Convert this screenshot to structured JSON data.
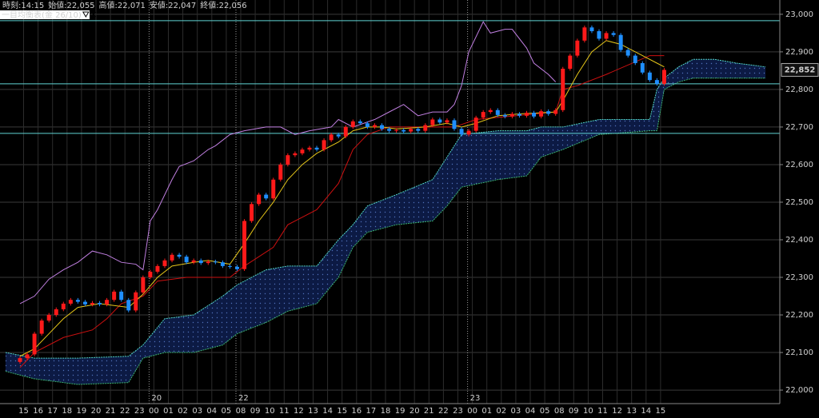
{
  "chart_data": {
    "type": "candlestick",
    "header": [
      "時刻:14:15",
      "始値:22,055",
      "高値:22,071",
      "安値:22,047",
      "終値:22,056"
    ],
    "indicator_label": "一目均衡表(金 26/10)",
    "ylim": [
      21964,
      23038
    ],
    "yticks": [
      {
        "value": 22000,
        "label": "22,000"
      },
      {
        "value": 22100,
        "label": "22,100"
      },
      {
        "value": 22200,
        "label": "22,200"
      },
      {
        "value": 22300,
        "label": "22,300"
      },
      {
        "value": 22400,
        "label": "22,400"
      },
      {
        "value": 22500,
        "label": "22,500"
      },
      {
        "value": 22600,
        "label": "22,600"
      },
      {
        "value": 22700,
        "label": "22,700"
      },
      {
        "value": 22800,
        "label": "22,800"
      },
      {
        "value": 22900,
        "label": "22,900"
      },
      {
        "value": 23000,
        "label": "23,000"
      }
    ],
    "grid": true,
    "x_labels": [
      "15",
      "16",
      "17",
      "18",
      "19",
      "20",
      "21",
      "22",
      "23",
      "00",
      "01",
      "02",
      "03",
      "04",
      "05",
      "08",
      "09",
      "10",
      "11",
      "12",
      "13",
      "14",
      "15",
      "16",
      "17",
      "18",
      "19",
      "20",
      "21",
      "22",
      "23",
      "00",
      "01",
      "02",
      "03",
      "04",
      "05",
      "08",
      "09",
      "10",
      "11",
      "12",
      "13",
      "14",
      "15"
    ],
    "date_labels": [
      null,
      null,
      null,
      null,
      null,
      null,
      null,
      null,
      null,
      "20",
      null,
      null,
      null,
      null,
      null,
      "22",
      null,
      null,
      null,
      null,
      null,
      null,
      null,
      null,
      null,
      null,
      null,
      null,
      null,
      null,
      null,
      "23",
      null,
      null,
      null,
      null,
      null,
      null,
      null,
      null,
      null,
      null,
      null,
      null,
      null
    ],
    "up_color": "#ff1a1a",
    "down_color": "#1f8fff",
    "open": [
      22075,
      22085,
      22095,
      22150,
      22185,
      22200,
      22215,
      22230,
      22240,
      22235,
      22228,
      22232,
      22228,
      22240,
      22262,
      22240,
      22212,
      22260,
      22300,
      22315,
      22330,
      22345,
      22360,
      22355,
      22340,
      22345,
      22338,
      22342,
      22340,
      22330,
      22328,
      22322,
      22450,
      22495,
      22520,
      22510,
      22560,
      22600,
      22625,
      22630,
      22640,
      22645,
      22640,
      22665,
      22680,
      22675,
      22700,
      22715,
      22710,
      22700,
      22705,
      22695,
      22690,
      22692,
      22688,
      22695,
      22690,
      22705,
      22720,
      22712,
      22718,
      22695,
      22680,
      22690,
      22725,
      22740,
      22745,
      22732,
      22728,
      22735,
      22730,
      22738,
      22728,
      22742,
      22735,
      22745,
      22855,
      22890,
      22930,
      22965,
      22955,
      22935,
      22950,
      22945,
      22905,
      22890,
      22870,
      22845,
      22825,
      22815
    ],
    "high": [
      22090,
      22100,
      22155,
      22190,
      22205,
      22220,
      22235,
      22245,
      22245,
      22240,
      22237,
      22237,
      22245,
      22267,
      22267,
      22245,
      22265,
      22305,
      22320,
      22335,
      22350,
      22365,
      22365,
      22360,
      22350,
      22350,
      22347,
      22347,
      22345,
      22335,
      22333,
      22455,
      22500,
      22525,
      22525,
      22565,
      22605,
      22630,
      22635,
      22645,
      22650,
      22650,
      22670,
      22685,
      22685,
      22705,
      22720,
      22720,
      22715,
      22710,
      22710,
      22700,
      22697,
      22697,
      22700,
      22700,
      22710,
      22725,
      22725,
      22723,
      22723,
      22700,
      22695,
      22730,
      22745,
      22750,
      22750,
      22737,
      22740,
      22740,
      22743,
      22743,
      22747,
      22747,
      22750,
      22860,
      22895,
      22935,
      22970,
      22970,
      22960,
      22955,
      22955,
      22950,
      22910,
      22895,
      22875,
      22850,
      22830,
      22857
    ],
    "low": [
      22070,
      22080,
      22090,
      22145,
      22180,
      22195,
      22210,
      22225,
      22230,
      22223,
      22223,
      22223,
      22223,
      22235,
      22235,
      22207,
      22207,
      22255,
      22295,
      22310,
      22325,
      22340,
      22350,
      22335,
      22335,
      22333,
      22333,
      22335,
      22325,
      22323,
      22317,
      22317,
      22445,
      22490,
      22505,
      22505,
      22555,
      22595,
      22620,
      22625,
      22635,
      22635,
      22635,
      22660,
      22670,
      22670,
      22695,
      22705,
      22695,
      22695,
      22690,
      22685,
      22685,
      22683,
      22683,
      22685,
      22685,
      22700,
      22707,
      22707,
      22690,
      22675,
      22675,
      22685,
      22720,
      22735,
      22727,
      22723,
      22723,
      22725,
      22725,
      22723,
      22723,
      22730,
      22730,
      22740,
      22850,
      22885,
      22925,
      22950,
      22930,
      22930,
      22940,
      22900,
      22885,
      22865,
      22840,
      22820,
      22810,
      22810
    ],
    "close": [
      22085,
      22095,
      22150,
      22185,
      22200,
      22215,
      22230,
      22240,
      22235,
      22228,
      22232,
      22228,
      22240,
      22262,
      22240,
      22212,
      22260,
      22300,
      22315,
      22330,
      22345,
      22360,
      22355,
      22340,
      22345,
      22338,
      22342,
      22340,
      22330,
      22328,
      22322,
      22450,
      22495,
      22520,
      22510,
      22560,
      22600,
      22625,
      22630,
      22640,
      22645,
      22640,
      22665,
      22680,
      22675,
      22700,
      22715,
      22710,
      22700,
      22705,
      22695,
      22690,
      22692,
      22688,
      22695,
      22690,
      22705,
      22720,
      22712,
      22718,
      22695,
      22680,
      22690,
      22725,
      22740,
      22745,
      22732,
      22728,
      22735,
      22730,
      22738,
      22728,
      22742,
      22735,
      22745,
      22855,
      22890,
      22930,
      22965,
      22955,
      22935,
      22950,
      22945,
      22905,
      22890,
      22870,
      22845,
      22825,
      22815,
      22852
    ],
    "cloud": {
      "x": [
        -2,
        2,
        8,
        15,
        17,
        20,
        24,
        28,
        30,
        34,
        37,
        41,
        44,
        46,
        48,
        52,
        57,
        59,
        61,
        66,
        70,
        72,
        75,
        80,
        87,
        88,
        89,
        91,
        93,
        96,
        99,
        103
      ],
      "upper": [
        22100,
        22085,
        22085,
        22090,
        22120,
        22190,
        22200,
        22250,
        22280,
        22320,
        22330,
        22330,
        22400,
        22440,
        22490,
        22520,
        22560,
        22620,
        22680,
        22690,
        22690,
        22700,
        22700,
        22720,
        22720,
        22800,
        22830,
        22860,
        22880,
        22880,
        22870,
        22860
      ],
      "lower": [
        22050,
        22030,
        22015,
        22020,
        22085,
        22100,
        22100,
        22120,
        22150,
        22180,
        22210,
        22230,
        22300,
        22380,
        22420,
        22440,
        22450,
        22490,
        22540,
        22560,
        22570,
        22620,
        22640,
        22680,
        22690,
        22690,
        22800,
        22820,
        22830,
        22830,
        22830,
        22830
      ],
      "upper_color": "#52d6c8",
      "lower_color": "#3cb371",
      "fill": "#0c1a44",
      "dot_color": "#4f6fb8"
    },
    "lines": [
      {
        "color": "#c07fe0",
        "x": [
          0,
          2,
          4,
          6,
          8,
          10,
          12,
          14,
          16,
          17,
          18,
          19,
          21,
          22,
          24,
          26,
          27,
          29,
          31,
          34,
          36,
          38,
          40,
          43,
          44,
          46,
          49,
          51,
          53,
          55,
          57,
          59,
          60,
          61,
          62,
          64,
          65,
          67,
          68,
          70,
          71,
          73,
          74
        ],
        "values": [
          22230,
          22250,
          22295,
          22320,
          22340,
          22370,
          22360,
          22340,
          22335,
          22320,
          22450,
          22480,
          22560,
          22595,
          22610,
          22640,
          22650,
          22680,
          22690,
          22700,
          22700,
          22680,
          22690,
          22700,
          22720,
          22700,
          22720,
          22740,
          22760,
          22730,
          22740,
          22740,
          22760,
          22810,
          22900,
          22980,
          22950,
          22960,
          22960,
          22910,
          22870,
          22840,
          22820
        ]
      },
      {
        "color": "#cc1010",
        "x": [
          0,
          2,
          6,
          10,
          12,
          14,
          17,
          19,
          23,
          29,
          31,
          35,
          37,
          41,
          44,
          46,
          48,
          51,
          60,
          63,
          74,
          75,
          77,
          81,
          87,
          89
        ],
        "values": [
          22060,
          22100,
          22140,
          22160,
          22190,
          22230,
          22250,
          22290,
          22300,
          22300,
          22330,
          22380,
          22440,
          22480,
          22550,
          22640,
          22680,
          22700,
          22700,
          22720,
          22740,
          22800,
          22810,
          22840,
          22890,
          22890
        ]
      },
      {
        "color": "#e6c619",
        "x": [
          0,
          2,
          4,
          6,
          8,
          11,
          15,
          17,
          19,
          21,
          24,
          26,
          29,
          31,
          33,
          35,
          37,
          39,
          41,
          44,
          46,
          48,
          50,
          52,
          56,
          59,
          61,
          63,
          66,
          69,
          74,
          75,
          77,
          79,
          81,
          83,
          86,
          88,
          89
        ],
        "values": [
          22090,
          22110,
          22150,
          22190,
          22220,
          22230,
          22220,
          22255,
          22300,
          22330,
          22340,
          22345,
          22335,
          22390,
          22450,
          22500,
          22560,
          22600,
          22630,
          22660,
          22690,
          22700,
          22700,
          22695,
          22700,
          22710,
          22700,
          22710,
          22730,
          22735,
          22740,
          22770,
          22840,
          22900,
          22930,
          22920,
          22890,
          22870,
          22860
        ]
      }
    ],
    "reference_lines": [
      22983,
      22815,
      22683
    ],
    "reference_color": "#5fd3d3",
    "last_price": {
      "value": 22852,
      "label": "22,852"
    }
  }
}
